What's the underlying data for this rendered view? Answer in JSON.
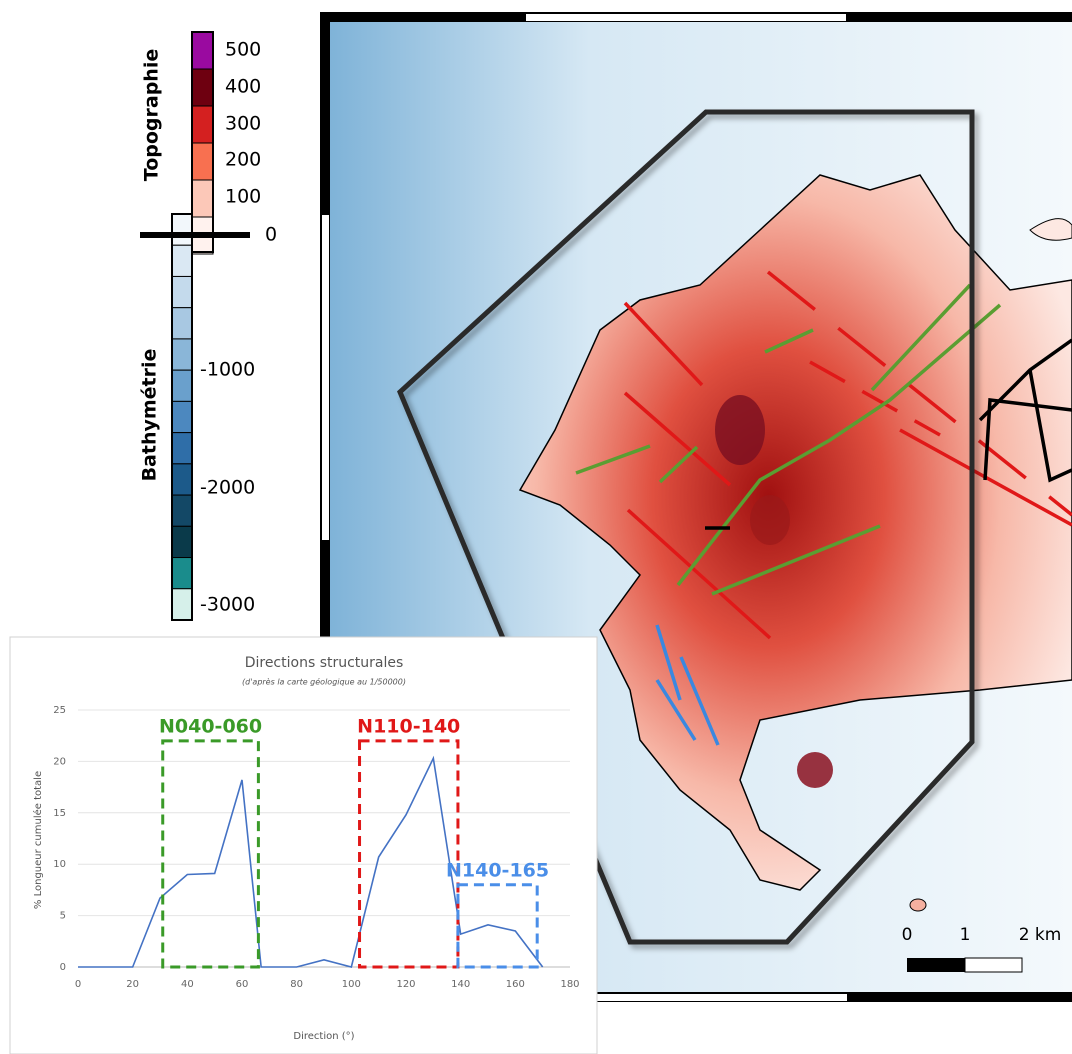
{
  "colorbar": {
    "topo_title": "Topographie",
    "bathy_title": "Bathymétrie",
    "topo_ticks": [
      500,
      400,
      300,
      200,
      100,
      0
    ],
    "bathy_ticks": [
      -1000,
      -2000,
      -3000
    ]
  },
  "map": {
    "scale_labels": [
      "0",
      "1",
      "2 km"
    ]
  },
  "chart_data": {
    "type": "line",
    "title": "Directions structurales",
    "subtitle": "(d'après la carte géologique au 1/50000)",
    "x_label": "Direction (°)",
    "y_label": "% Longueur cumulée totale",
    "x": [
      0,
      10,
      20,
      30,
      40,
      50,
      60,
      67,
      80,
      90,
      100,
      110,
      120,
      130,
      140,
      150,
      160,
      170
    ],
    "values": [
      0,
      0,
      0,
      6.7,
      9,
      9.1,
      18.2,
      0,
      0,
      0.7,
      0,
      10.7,
      14.8,
      20.3,
      3.2,
      4.1,
      3.5,
      0
    ],
    "color": "#4472c4",
    "xlim": [
      0,
      180
    ],
    "xticks": [
      0,
      20,
      40,
      60,
      80,
      100,
      120,
      140,
      160,
      180
    ],
    "ylim": [
      0,
      25
    ],
    "yticks": [
      0,
      5,
      10,
      15,
      20,
      25
    ],
    "grid": true,
    "regions": [
      {
        "label": "N040-060",
        "color": "#3a9a28",
        "x": [
          31,
          66
        ],
        "y": [
          0,
          22
        ]
      },
      {
        "label": "N110-140",
        "color": "#e01818",
        "x": [
          103,
          139
        ],
        "y": [
          0,
          22
        ]
      },
      {
        "label": "N140-165",
        "color": "#4a8ee8",
        "x": [
          139,
          168
        ],
        "y": [
          0,
          8
        ]
      }
    ]
  }
}
